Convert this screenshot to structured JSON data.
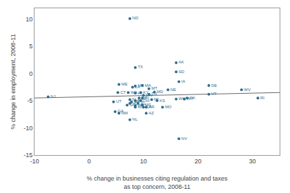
{
  "chart_data": {
    "type": "scatter",
    "xlabel": "% change in businesses citing regulation and taxes\nas top concern, 2008-11",
    "ylabel": "% change in employment, 2008-11",
    "xlim": [
      -10,
      35
    ],
    "ylim": [
      -15,
      12
    ],
    "xticks": [
      -10,
      0,
      10,
      20,
      30
    ],
    "yticks": [
      -15,
      -10,
      -5,
      0,
      5,
      10
    ],
    "grid": false,
    "series": [
      {
        "type": "scatter",
        "color": "#2e6e8e",
        "labels": [
          "NJ",
          "ND",
          "TX",
          "ME",
          "LA",
          "NH",
          "MA",
          "MT",
          "CT",
          "WA",
          "HI",
          "KY",
          "TN",
          "MD",
          "NE",
          "AK",
          "SD",
          "IA",
          "DE",
          "VT",
          "WV",
          "RI",
          "UT",
          "FL",
          "NC",
          "OR",
          "SC",
          "PA",
          "OH",
          "KS",
          "ID",
          "CA",
          "AR",
          "MO",
          "MI",
          "IN",
          "MN",
          "OK",
          "WY",
          "NM",
          "GA",
          "AZ",
          "NL",
          "NV",
          "AL",
          "MS",
          "WI",
          "WK",
          "VO"
        ],
        "x": [
          -7.5,
          7.5,
          8.5,
          5.5,
          8.0,
          8.5,
          9.8,
          11.0,
          5.3,
          7.2,
          8.5,
          9.5,
          11.0,
          12.0,
          14.5,
          16.0,
          16.0,
          16.5,
          22.0,
          22.0,
          28.0,
          31.0,
          4.5,
          7.5,
          8.5,
          7.8,
          7.0,
          8.5,
          9.5,
          12.5,
          8.5,
          10.0,
          10.5,
          13.5,
          11.5,
          9.8,
          10.0,
          18.0,
          17.5,
          5.5,
          4.8,
          10.5,
          7.5,
          16.5,
          9.0,
          9.8,
          9.2,
          16.0,
          7.5
        ],
        "values": [
          -4.3,
          10.1,
          1.1,
          -2.0,
          -2.5,
          -2.3,
          -2.2,
          -2.8,
          -3.5,
          -3.5,
          -3.6,
          -3.5,
          -3.8,
          -3.4,
          -3.0,
          2.0,
          0.3,
          -1.5,
          -2.2,
          -3.8,
          -3.0,
          -4.5,
          -5.2,
          -4.8,
          -5.0,
          -5.2,
          -5.8,
          -5.9,
          -5.0,
          -5.0,
          -6.2,
          -6.2,
          -6.2,
          -6.2,
          -4.8,
          -4.5,
          -4.0,
          -4.5,
          -4.7,
          -7.3,
          -7.0,
          -7.3,
          -8.5,
          -12.0,
          -5.5,
          -5.8,
          -4.5,
          -4.7,
          -5.5
        ]
      },
      {
        "type": "line",
        "color": "#666666",
        "x": [
          -10,
          35
        ],
        "values": [
          -4.5,
          -3.5
        ]
      }
    ]
  }
}
